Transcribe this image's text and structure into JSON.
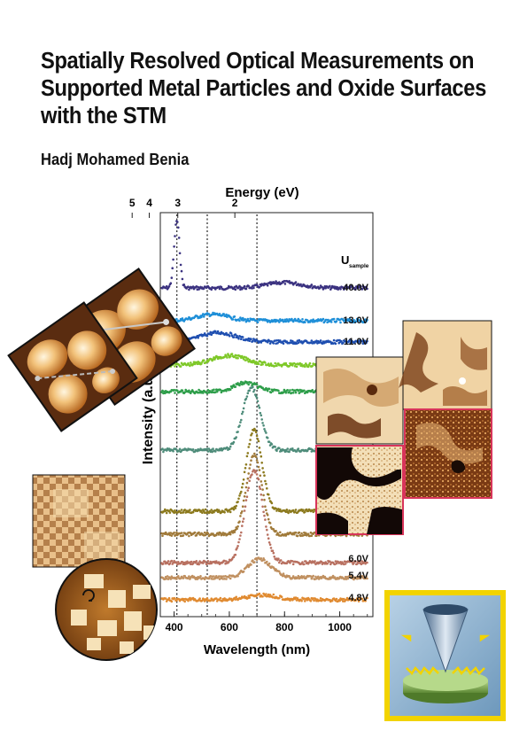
{
  "cover": {
    "title_lines": [
      "Spatially Resolved Optical Measurements on",
      "Supported Metal Particles and Oxide Surfaces",
      "with the STM"
    ],
    "author": "Hadj Mohamed Benia"
  },
  "colors": {
    "icon_frame": "#f2d300",
    "icon_bg": "#8fb6d2",
    "stm_tip": "#5a7a9a",
    "sample_disk": "#8ab35a",
    "photon": "#e8c800",
    "image_frame_pink": "#d8345a"
  },
  "icons": [
    "stm-tip-icon",
    "photon-wave-icon",
    "sample-disk-icon"
  ],
  "chart_data": {
    "type": "line",
    "title": "",
    "xlabel": "Wavelength (nm)",
    "ylabel": "Intensity (a.u.)",
    "x2label": "Energy (eV)",
    "xlim": [
      350,
      1120
    ],
    "x_ticks": [
      400,
      600,
      800,
      1000
    ],
    "energy_ticks": [
      5,
      4,
      3,
      2
    ],
    "reference_lines_nm": [
      410,
      520,
      700
    ],
    "legend_title": "U",
    "legend_title_sub": "sample",
    "series": [
      {
        "label": "40.0V",
        "color": "#3b3280",
        "peak_nm": 410,
        "peak": 1.0,
        "width": 14
      },
      {
        "label": "13.0V",
        "color": "#1e8fd8",
        "peak_nm": 540,
        "peak": 0.18,
        "width": 80
      },
      {
        "label": "11.0V",
        "color": "#1f4fb0",
        "peak_nm": 560,
        "peak": 0.28,
        "width": 90
      },
      {
        "label": "",
        "color": "#7ec828",
        "peak_nm": 600,
        "peak": 0.35,
        "width": 90
      },
      {
        "label": "",
        "color": "#2e9e4a",
        "peak_nm": 660,
        "peak": 0.45,
        "width": 60
      },
      {
        "label": "",
        "color": "#4e8c7a",
        "peak_nm": 680,
        "peak": 0.9,
        "width": 45
      },
      {
        "label": "",
        "color": "#8c7a1e",
        "peak_nm": 690,
        "peak": 1.0,
        "width": 40
      },
      {
        "label": "",
        "color": "#a07a3a",
        "peak_nm": 690,
        "peak": 1.0,
        "width": 40
      },
      {
        "label": "6.0V",
        "color": "#b87060",
        "peak_nm": 690,
        "peak": 0.95,
        "width": 45
      },
      {
        "label": "5.4V",
        "color": "#c09060",
        "peak_nm": 710,
        "peak": 0.55,
        "width": 60
      },
      {
        "label": "4.8V",
        "color": "#e08a30",
        "peak_nm": 720,
        "peak": 0.3,
        "width": 80
      }
    ]
  }
}
